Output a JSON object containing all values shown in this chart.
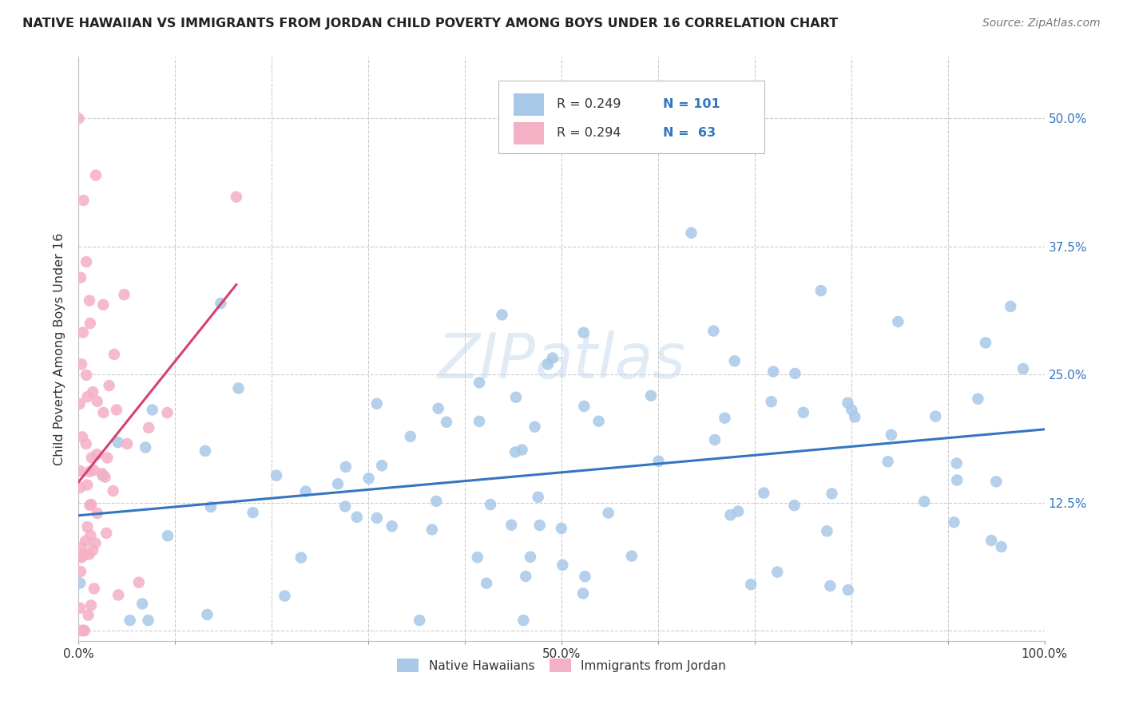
{
  "title": "NATIVE HAWAIIAN VS IMMIGRANTS FROM JORDAN CHILD POVERTY AMONG BOYS UNDER 16 CORRELATION CHART",
  "source": "Source: ZipAtlas.com",
  "ylabel": "Child Poverty Among Boys Under 16",
  "r_hawaiian": 0.249,
  "n_hawaiian": 101,
  "r_jordan": 0.294,
  "n_jordan": 63,
  "xlim": [
    0.0,
    1.0
  ],
  "ylim": [
    -0.01,
    0.56
  ],
  "ytick_positions": [
    0.0,
    0.125,
    0.25,
    0.375,
    0.5
  ],
  "ytick_labels": [
    "",
    "12.5%",
    "25.0%",
    "37.5%",
    "50.0%"
  ],
  "color_hawaiian": "#a8c8e8",
  "color_jordan": "#f4b0c4",
  "line_color_hawaiian": "#3575c0",
  "line_color_jordan": "#d84070",
  "background_color": "#ffffff",
  "grid_color": "#cccccc",
  "watermark": "ZIPatlas",
  "title_fontsize": 11.5,
  "source_fontsize": 10,
  "legend_r_color": "#3575c0",
  "legend_n_color": "#3575c0"
}
